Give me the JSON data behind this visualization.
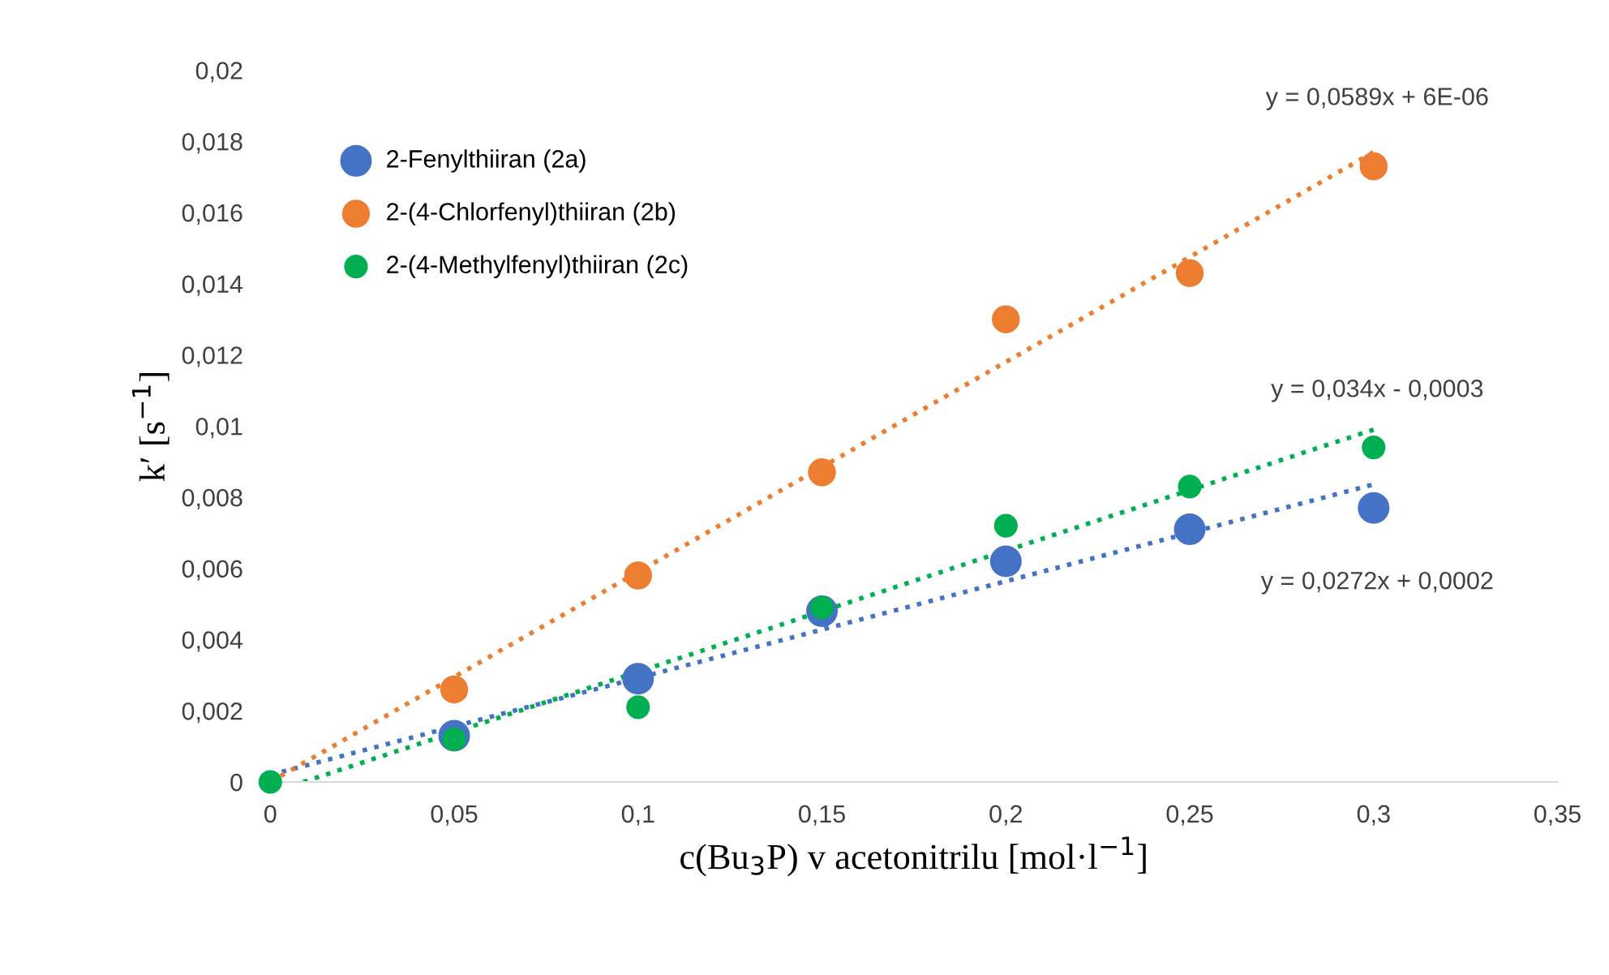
{
  "chart_data": {
    "type": "scatter",
    "xlabel": "c(Bu$_{3}$P) v acetonitrilu [mol·l$^{−1}$]",
    "ylabel": "k′ [s$^{−1}$]",
    "x": [
      0,
      0.05,
      0.1,
      0.15,
      0.2,
      0.25,
      0.3
    ],
    "series": [
      {
        "name": "2-Fenylthiiran (2a)",
        "color": "#4472c4",
        "values": [
          null,
          0.0013,
          0.0029,
          0.0048,
          0.0062,
          0.0071,
          0.0077
        ]
      },
      {
        "name": "2-(4-Chlorfenyl)thiiran (2b)",
        "color": "#ed7d31",
        "values": [
          null,
          0.0026,
          0.0058,
          0.0087,
          0.013,
          0.0143,
          0.0173
        ]
      },
      {
        "name": "2-(4-Methylfenyl)thiiran (2c)",
        "color": "#00b050",
        "values": [
          0,
          0.0012,
          0.0021,
          0.0049,
          0.0072,
          0.0083,
          0.0094
        ]
      },
      {
        "type": "line",
        "color": "#4472c4",
        "x": [
          0,
          0.3
        ],
        "values": [
          0.0002,
          0.00836
        ],
        "line_style": "dotted",
        "marker": "none"
      },
      {
        "type": "line",
        "color": "#ed7d31",
        "x": [
          0,
          0.3
        ],
        "values": [
          0,
          0.0177
        ],
        "line_style": "dotted",
        "marker": "none"
      },
      {
        "type": "line",
        "color": "#00b050",
        "x": [
          0.009,
          0.3
        ],
        "values": [
          0,
          0.0099
        ],
        "line_style": "dotted",
        "marker": "none"
      }
    ],
    "annotations": [
      "y = 0,0272x + 0,0002",
      "y = 0,0589x + 6E-06",
      "y = 0,034x - 0,0003"
    ],
    "marker": "circle",
    "legend": "top left",
    "grid": false,
    "xlim": [
      0,
      0.35
    ],
    "xticks": [
      0,
      {
        "value": 0.05,
        "label": "0,05"
      },
      {
        "value": 0.1,
        "label": "0,1"
      },
      {
        "value": 0.15,
        "label": "0,15"
      },
      {
        "value": 0.2,
        "label": "0,2"
      },
      {
        "value": 0.25,
        "label": "0,25"
      },
      {
        "value": 0.3,
        "label": "0,3"
      },
      {
        "value": 0.35,
        "label": "0,35"
      }
    ],
    "ylim": [
      0,
      0.02
    ],
    "yticks": [
      0,
      {
        "value": 0.002,
        "label": "0,002"
      },
      {
        "value": 0.004,
        "label": "0,004"
      },
      {
        "value": 0.006,
        "label": "0,006"
      },
      {
        "value": 0.008,
        "label": "0,008"
      },
      {
        "value": 0.01,
        "label": "0,01"
      },
      {
        "value": 0.012,
        "label": "0,012"
      },
      {
        "value": 0.014,
        "label": "0,014"
      },
      {
        "value": 0.016,
        "label": "0,016"
      },
      {
        "value": 0.018,
        "label": "0,018"
      },
      {
        "value": 0.02,
        "label": "0,02"
      }
    ]
  }
}
